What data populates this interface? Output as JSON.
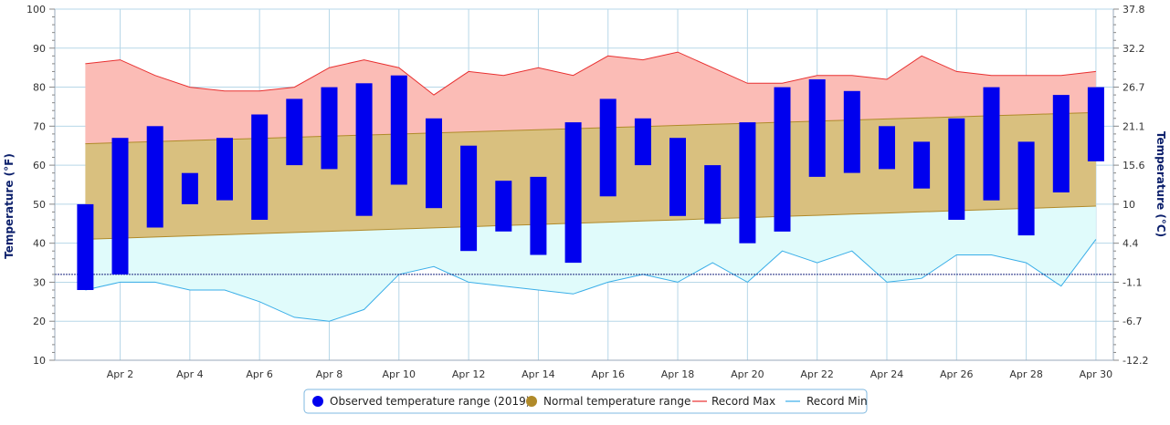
{
  "chart_data": {
    "type": "bar",
    "ylabel_left": "Temperature (°F)",
    "ylabel_right": "Temperature (°C)",
    "ylim": [
      10,
      100
    ],
    "y_ticks_left": [
      10,
      20,
      30,
      40,
      50,
      60,
      70,
      80,
      90,
      100
    ],
    "y_ticks_right": [
      "-12.2",
      "-6.7",
      "-1.1",
      "4.4",
      "10",
      "15.6",
      "21.1",
      "26.7",
      "32.2",
      "37.8"
    ],
    "x_ticks": [
      {
        "day": 2,
        "label": "Apr 2"
      },
      {
        "day": 4,
        "label": "Apr 4"
      },
      {
        "day": 6,
        "label": "Apr 6"
      },
      {
        "day": 8,
        "label": "Apr 8"
      },
      {
        "day": 10,
        "label": "Apr 10"
      },
      {
        "day": 12,
        "label": "Apr 12"
      },
      {
        "day": 14,
        "label": "Apr 14"
      },
      {
        "day": 16,
        "label": "Apr 16"
      },
      {
        "day": 18,
        "label": "Apr 18"
      },
      {
        "day": 20,
        "label": "Apr 20"
      },
      {
        "day": 22,
        "label": "Apr 22"
      },
      {
        "day": 24,
        "label": "Apr 24"
      },
      {
        "day": 26,
        "label": "Apr 26"
      },
      {
        "day": 28,
        "label": "Apr 28"
      },
      {
        "day": 30,
        "label": "Apr 30"
      }
    ],
    "days": [
      1,
      2,
      3,
      4,
      5,
      6,
      7,
      8,
      9,
      10,
      11,
      12,
      13,
      14,
      15,
      16,
      17,
      18,
      19,
      20,
      21,
      22,
      23,
      24,
      25,
      26,
      27,
      28,
      29,
      30
    ],
    "freezing_line_f": 32,
    "colors": {
      "observed": "#0000ee",
      "normal_fill": "#d9c07f",
      "normal_line": "#b08a2a",
      "record_max_line": "#e83030",
      "record_max_fill": "#fbbcb6",
      "record_min_line": "#3aaee8",
      "record_min_fill": "#e0fbfb",
      "grid": "#b7d7e8",
      "freezing": "#1a237e"
    },
    "series": [
      {
        "name": "Observed temperature range (2019)",
        "low": [
          28,
          32,
          44,
          50,
          51,
          46,
          60,
          59,
          47,
          55,
          49,
          38,
          43,
          37,
          35,
          52,
          60,
          47,
          45,
          40,
          43,
          57,
          58,
          59,
          54,
          46,
          51,
          42,
          53,
          61
        ],
        "high": [
          50,
          67,
          70,
          58,
          67,
          73,
          77,
          80,
          81,
          83,
          72,
          65,
          56,
          57,
          71,
          77,
          72,
          67,
          60,
          71,
          80,
          82,
          79,
          70,
          66,
          72,
          80,
          66,
          78,
          80
        ]
      },
      {
        "name": "Normal temperature range",
        "low_start": 41,
        "low_end": 49.5,
        "high_start": 65.5,
        "high_end": 73.5
      },
      {
        "name": "Record Max",
        "values": [
          86,
          87,
          83,
          80,
          79,
          79,
          80,
          85,
          87,
          85,
          78,
          84,
          83,
          85,
          83,
          88,
          87,
          89,
          85,
          81,
          81,
          83,
          83,
          82,
          88,
          84,
          83,
          83,
          83,
          84
        ]
      },
      {
        "name": "Record Min",
        "values": [
          28,
          30,
          30,
          28,
          28,
          25,
          21,
          20,
          23,
          32,
          34,
          30,
          29,
          28,
          27,
          30,
          32,
          30,
          35,
          30,
          38,
          35,
          38,
          30,
          31,
          37,
          37,
          35,
          29,
          41
        ]
      }
    ],
    "legend": {
      "placement": "bottom-center",
      "items": [
        {
          "key": "observed",
          "label": "Observed temperature range (2019)"
        },
        {
          "key": "normal",
          "label": "Normal temperature range"
        },
        {
          "key": "record_max",
          "label": "Record Max"
        },
        {
          "key": "record_min",
          "label": "Record Min"
        }
      ]
    }
  }
}
